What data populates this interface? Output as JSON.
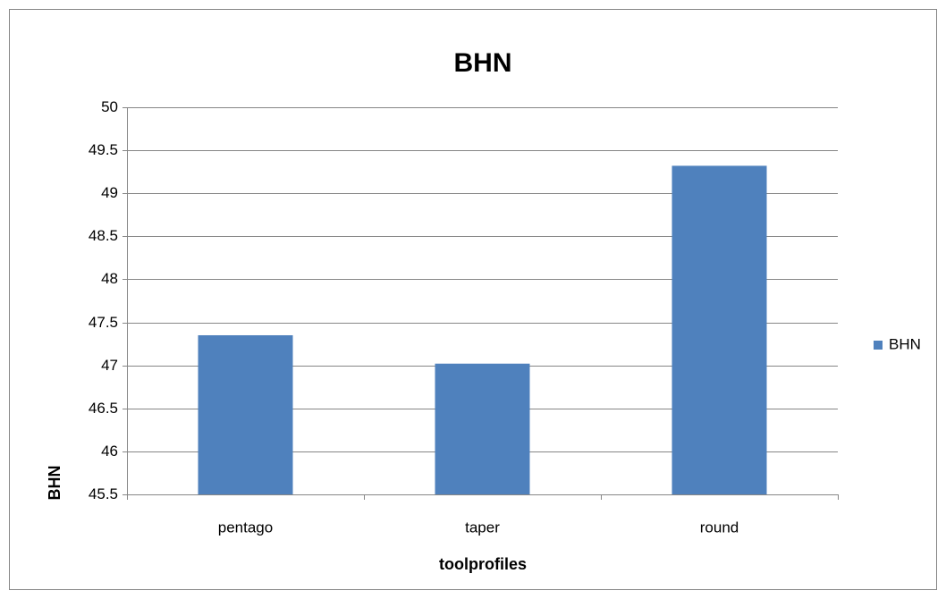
{
  "chart_data": {
    "type": "bar",
    "title": "BHN",
    "x_label": "toolprofiles",
    "y_label": "BHN",
    "categories": [
      "pentago",
      "taper",
      "round"
    ],
    "series": [
      {
        "name": "BHN",
        "color": "#4f81bd",
        "values": [
          47.35,
          47.02,
          49.32
        ]
      }
    ],
    "ylim": [
      45.5,
      50
    ],
    "yticks": [
      45.5,
      46,
      46.5,
      47,
      47.5,
      48,
      48.5,
      49,
      49.5,
      50
    ],
    "grid": true,
    "legend": "right"
  }
}
